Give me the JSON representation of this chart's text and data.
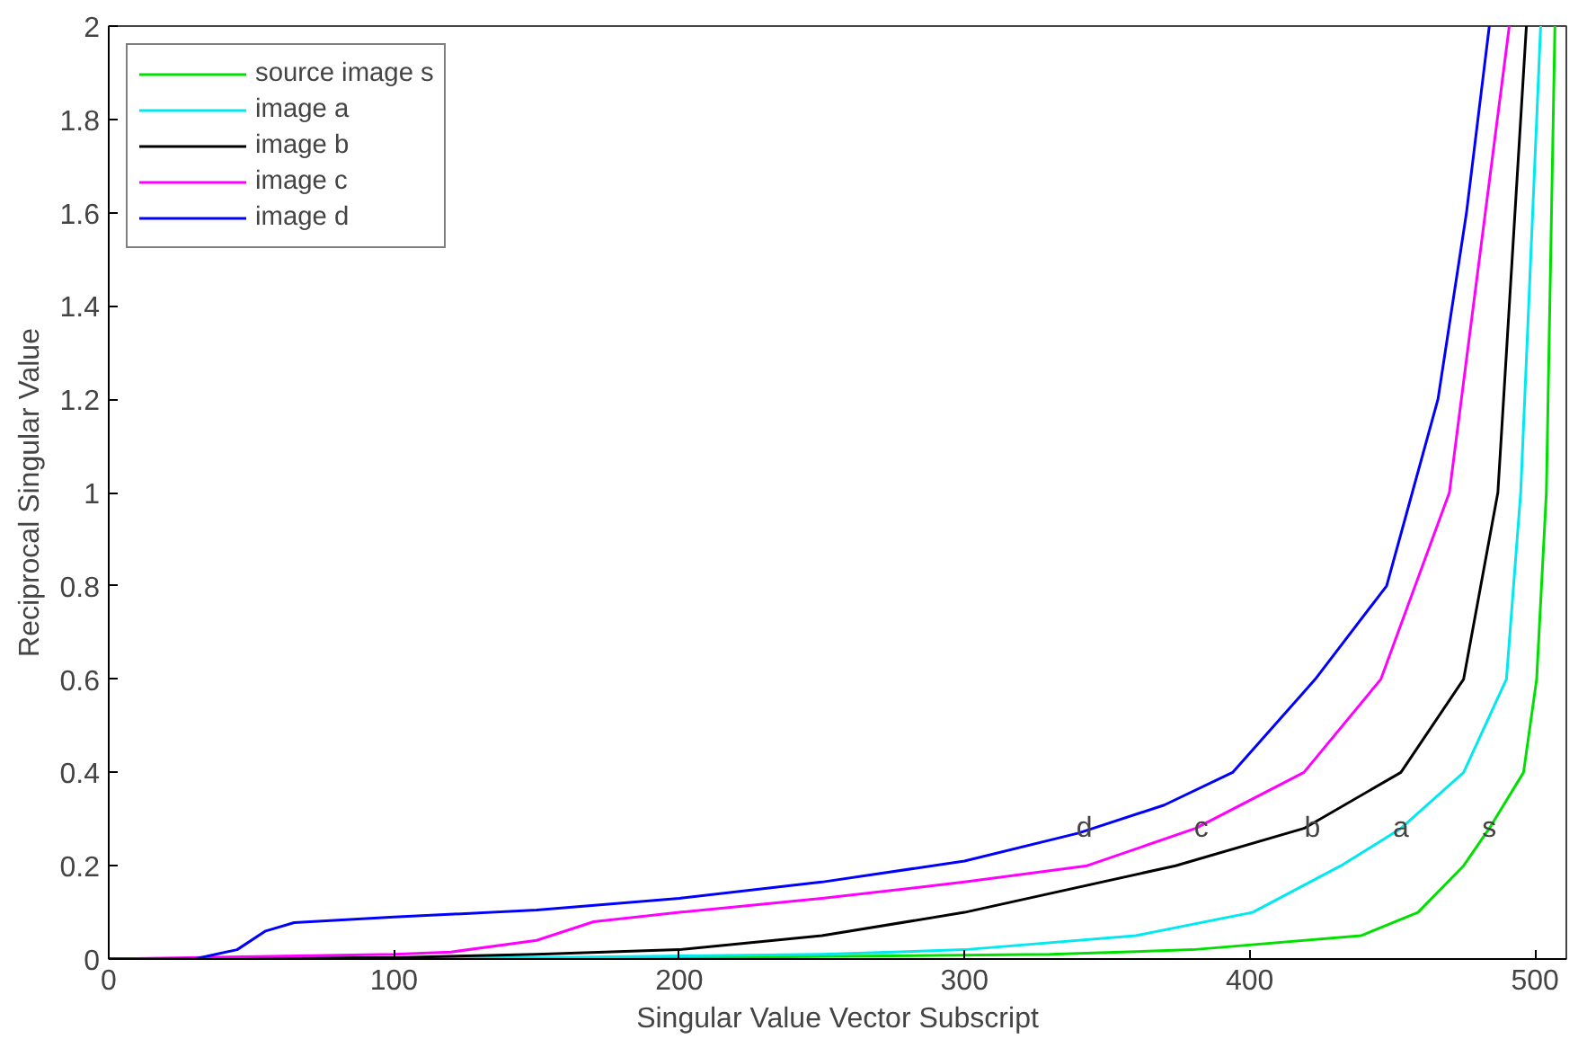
{
  "chart_data": {
    "type": "line",
    "xlabel": "Singular Value Vector Subscript",
    "ylabel": "Reciprocal Singular Value",
    "xlim": [
      0,
      511
    ],
    "ylim": [
      0,
      2
    ],
    "xticks": [
      0,
      100,
      200,
      300,
      400,
      500
    ],
    "yticks": [
      0,
      0.2,
      0.4,
      0.6,
      0.8,
      1,
      1.2,
      1.4,
      1.6,
      1.8,
      2
    ],
    "grid": false,
    "legend": "top left",
    "line_style": "solid",
    "marker": "none",
    "series": [
      {
        "name": "source image s",
        "color": "#00e000",
        "x": [
          0,
          200,
          330,
          380,
          439,
          459,
          475,
          484,
          496,
          500.6,
          504,
          507
        ],
        "values": [
          0,
          0.003,
          0.01,
          0.02,
          0.05,
          0.1,
          0.2,
          0.28,
          0.4,
          0.6,
          1,
          2
        ]
      },
      {
        "name": "image a",
        "color": "#00e8f0",
        "x": [
          0,
          150,
          250,
          300,
          360,
          401,
          432,
          453,
          475,
          490,
          495,
          502
        ],
        "values": [
          0,
          0.003,
          0.01,
          0.02,
          0.05,
          0.1,
          0.2,
          0.28,
          0.4,
          0.6,
          1,
          2
        ]
      },
      {
        "name": "image b",
        "color": "#000000",
        "x": [
          0,
          100,
          150,
          200,
          250,
          300,
          374,
          419,
          453,
          475,
          487,
          497
        ],
        "values": [
          0,
          0.003,
          0.01,
          0.02,
          0.05,
          0.1,
          0.2,
          0.28,
          0.4,
          0.6,
          1,
          2
        ]
      },
      {
        "name": "image c",
        "color": "#ff00ff",
        "x": [
          0,
          100,
          120,
          150,
          170,
          200,
          250,
          300,
          343,
          381,
          419,
          446,
          470,
          491
        ],
        "values": [
          0,
          0.01,
          0.015,
          0.04,
          0.08,
          0.1,
          0.13,
          0.165,
          0.2,
          0.28,
          0.4,
          0.6,
          1,
          2
        ]
      },
      {
        "name": "image d",
        "color": "#0000ff",
        "x": [
          0,
          30,
          45,
          55,
          65,
          100,
          150,
          200,
          250,
          300,
          340,
          370,
          394,
          423,
          448,
          457,
          466,
          476,
          484
        ],
        "values": [
          0,
          0,
          0.02,
          0.06,
          0.078,
          0.09,
          0.105,
          0.13,
          0.165,
          0.21,
          0.27,
          0.33,
          0.4,
          0.6,
          0.8,
          1,
          1.2,
          1.6,
          2
        ]
      }
    ],
    "annotations": [
      {
        "text": "d",
        "x": 342,
        "y": 0.28
      },
      {
        "text": "c",
        "x": 383,
        "y": 0.28
      },
      {
        "text": "b",
        "x": 422,
        "y": 0.28
      },
      {
        "text": "a",
        "x": 453,
        "y": 0.28
      },
      {
        "text": "s",
        "x": 484,
        "y": 0.28
      }
    ]
  }
}
